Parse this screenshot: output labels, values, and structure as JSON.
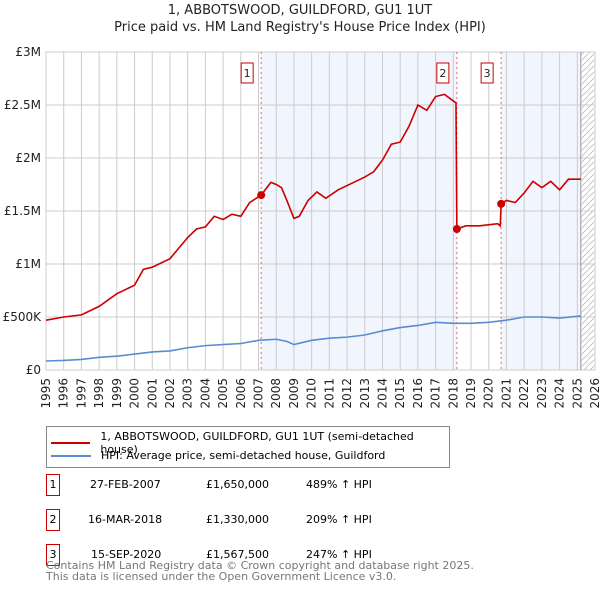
{
  "chart_data": {
    "type": "line",
    "title": "1, ABBOTSWOOD, GUILDFORD, GU1 1UT",
    "subtitle": "Price paid vs. HM Land Registry's House Price Index (HPI)",
    "xlim": [
      1995,
      2026
    ],
    "ylim": [
      0,
      3000000
    ],
    "yticks": [
      {
        "v": 0,
        "label": "£0"
      },
      {
        "v": 500000,
        "label": "£500K"
      },
      {
        "v": 1000000,
        "label": "£1M"
      },
      {
        "v": 1500000,
        "label": "£1.5M"
      },
      {
        "v": 2000000,
        "label": "£2M"
      },
      {
        "v": 2500000,
        "label": "£2.5M"
      },
      {
        "v": 3000000,
        "label": "£3M"
      }
    ],
    "xticks": [
      "1995",
      "1996",
      "1997",
      "1998",
      "1999",
      "2000",
      "2001",
      "2002",
      "2003",
      "2004",
      "2005",
      "2006",
      "2007",
      "2008",
      "2009",
      "2010",
      "2011",
      "2012",
      "2013",
      "2014",
      "2015",
      "2016",
      "2017",
      "2018",
      "2019",
      "2020",
      "2021",
      "2022",
      "2023",
      "2024",
      "2025",
      "2026"
    ],
    "shaded_ranges": [
      [
        2007.15,
        2018.2
      ],
      [
        2020.7,
        2025.2
      ]
    ],
    "forecast_start": 2025.2,
    "series": [
      {
        "name": "1, ABBOTSWOOD, GUILDFORD, GU1 1UT (semi-detached house)",
        "color": "#cc0000",
        "x": [
          1995,
          1996,
          1997,
          1998,
          1998.5,
          1999,
          2000,
          2000.5,
          2001,
          2002,
          2003,
          2003.5,
          2004,
          2004.5,
          2005,
          2005.5,
          2006,
          2006.5,
          2007.15,
          2007.7,
          2008,
          2008.3,
          2008.6,
          2009,
          2009.3,
          2009.8,
          2010.3,
          2010.8,
          2011.5,
          2012,
          2012.5,
          2013,
          2013.5,
          2014,
          2014.5,
          2015,
          2015.5,
          2016,
          2016.5,
          2017,
          2017.5,
          2017.9,
          2018.15,
          2018.2,
          2018.7,
          2019.5,
          2020.5,
          2020.65,
          2020.7,
          2021,
          2021.5,
          2022,
          2022.5,
          2023,
          2023.5,
          2024,
          2024.5,
          2025.2
        ],
        "y": [
          470000,
          500000,
          520000,
          600000,
          660000,
          720000,
          800000,
          950000,
          970000,
          1050000,
          1250000,
          1330000,
          1350000,
          1450000,
          1420000,
          1470000,
          1450000,
          1580000,
          1650000,
          1770000,
          1750000,
          1720000,
          1600000,
          1430000,
          1450000,
          1600000,
          1680000,
          1620000,
          1700000,
          1740000,
          1780000,
          1820000,
          1870000,
          1980000,
          2130000,
          2150000,
          2300000,
          2500000,
          2450000,
          2580000,
          2600000,
          2550000,
          2520000,
          1330000,
          1360000,
          1360000,
          1380000,
          1360000,
          1567500,
          1600000,
          1580000,
          1670000,
          1780000,
          1720000,
          1780000,
          1700000,
          1800000,
          1800000
        ]
      },
      {
        "name": "HPI: Average price, semi-detached house, Guildford",
        "color": "#5b8bd0",
        "x": [
          1995,
          1996,
          1997,
          1998,
          1999,
          2000,
          2001,
          2002,
          2003,
          2004,
          2005,
          2006,
          2007,
          2008,
          2008.6,
          2009,
          2010,
          2011,
          2012,
          2013,
          2014,
          2015,
          2016,
          2017,
          2018,
          2019,
          2020,
          2021,
          2022,
          2023,
          2024,
          2025.2
        ],
        "y": [
          85000,
          90000,
          100000,
          120000,
          130000,
          150000,
          170000,
          180000,
          210000,
          230000,
          240000,
          250000,
          280000,
          290000,
          270000,
          240000,
          280000,
          300000,
          310000,
          330000,
          370000,
          400000,
          420000,
          450000,
          440000,
          440000,
          450000,
          470000,
          500000,
          500000,
          490000,
          510000
        ]
      }
    ],
    "sales": [
      {
        "id": "1",
        "date": "27-FEB-2007",
        "x": 2007.15,
        "price": "£1,650,000",
        "value": 1650000,
        "hpi": "489% ↑ HPI"
      },
      {
        "id": "2",
        "date": "16-MAR-2018",
        "x": 2018.2,
        "price": "£1,330,000",
        "value": 1330000,
        "hpi": "209% ↑ HPI"
      },
      {
        "id": "3",
        "date": "15-SEP-2020",
        "x": 2020.7,
        "price": "£1,567,500",
        "value": 1567500,
        "hpi": "247% ↑ HPI"
      }
    ]
  },
  "footer": {
    "line1": "Contains HM Land Registry data © Crown copyright and database right 2025.",
    "line2": "This data is licensed under the Open Government Licence v3.0."
  }
}
